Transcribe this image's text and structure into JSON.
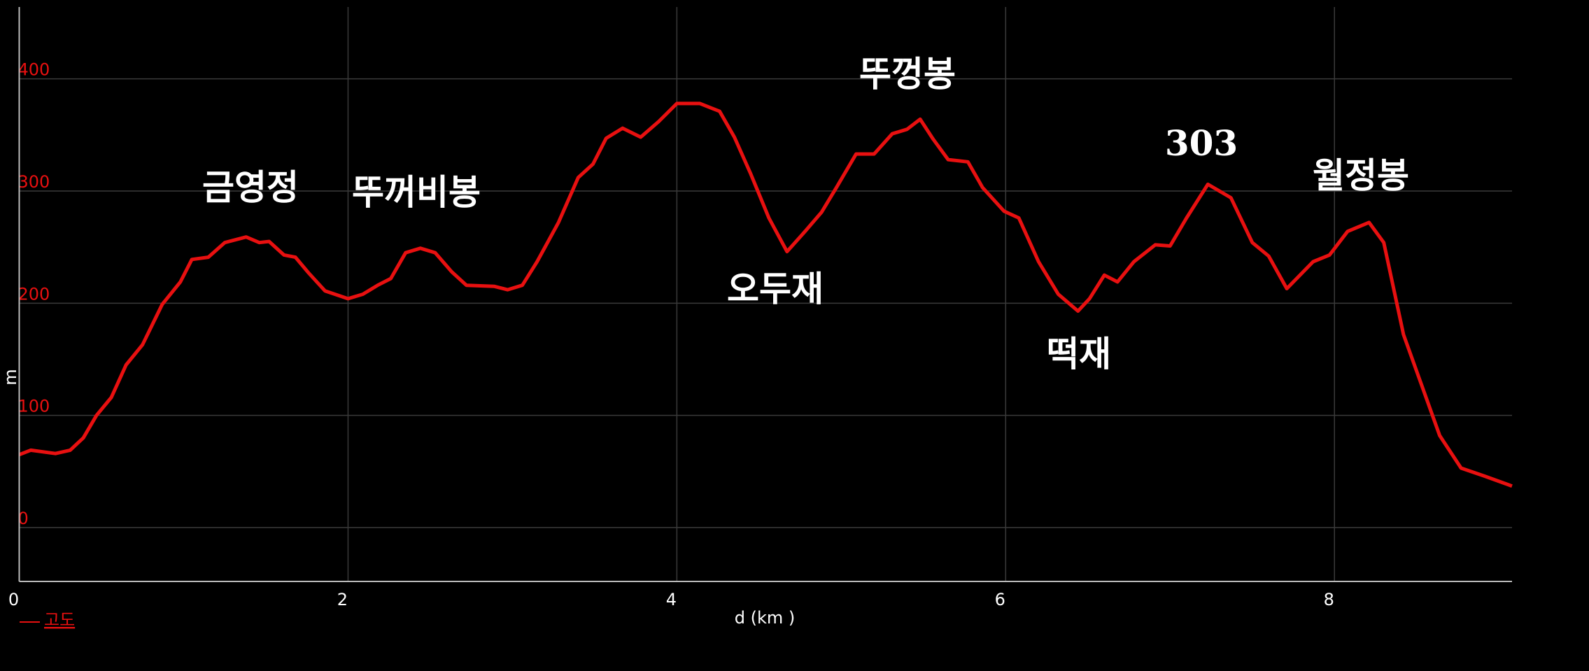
{
  "chart_data": {
    "type": "line",
    "x_label": "d (km )",
    "y_label": "m",
    "x": [
      0,
      0.07,
      0.22,
      0.31,
      0.39,
      0.47,
      0.56,
      0.65,
      0.75,
      0.87,
      0.98,
      1.05,
      1.15,
      1.25,
      1.38,
      1.46,
      1.52,
      1.61,
      1.68,
      1.76,
      1.86,
      2.0,
      2.09,
      2.18,
      2.26,
      2.35,
      2.44,
      2.53,
      2.63,
      2.72,
      2.89,
      2.97,
      3.06,
      3.15,
      3.28,
      3.4,
      3.49,
      3.57,
      3.67,
      3.78,
      3.89,
      4.0,
      4.14,
      4.26,
      4.35,
      4.45,
      4.56,
      4.67,
      4.78,
      4.88,
      4.97,
      5.09,
      5.2,
      5.31,
      5.4,
      5.48,
      5.56,
      5.65,
      5.77,
      5.86,
      5.99,
      6.08,
      6.2,
      6.32,
      6.44,
      6.51,
      6.6,
      6.68,
      6.78,
      6.91,
      7.0,
      7.1,
      7.23,
      7.37,
      7.5,
      7.6,
      7.71,
      7.87,
      7.97,
      8.08,
      8.21,
      8.3,
      8.42,
      8.54,
      8.64,
      8.77,
      8.91,
      9.08
    ],
    "series": [
      {
        "name": "고도",
        "color": "#e81010",
        "values": [
          65,
          69,
          66,
          69,
          80,
          100,
          116,
          145,
          163,
          199,
          219,
          239,
          241,
          254,
          259,
          254,
          255,
          243,
          241,
          227,
          211,
          204,
          208,
          216,
          222,
          245,
          249,
          245,
          228,
          216,
          215,
          212,
          216,
          237,
          272,
          312,
          324,
          347,
          356,
          348,
          362,
          378,
          378,
          371,
          348,
          315,
          276,
          246,
          264,
          281,
          303,
          333,
          333,
          351,
          355,
          364,
          346,
          328,
          326,
          303,
          282,
          276,
          237,
          208,
          193,
          204,
          225,
          219,
          237,
          252,
          251,
          276,
          306,
          294,
          254,
          242,
          213,
          237,
          243,
          264,
          272,
          254,
          172,
          123,
          82,
          53,
          46,
          37
        ]
      }
    ],
    "xlim": [
      0,
      9.08
    ],
    "ylim": [
      -48,
      464
    ],
    "xticks": [
      0,
      2,
      4,
      6,
      8
    ],
    "yticks": [
      0,
      100,
      200,
      300,
      400
    ],
    "grid": true,
    "annotations": [
      "금영정",
      "뚜꺼비봉",
      "오두재",
      "뚜껑봉",
      "떡재",
      "303",
      "월정봉"
    ]
  }
}
